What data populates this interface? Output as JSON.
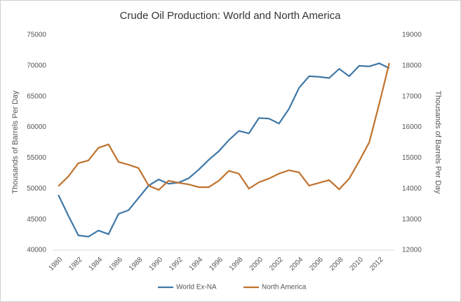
{
  "chart_data": {
    "type": "line",
    "title": "Crude Oil Production:  World and North America",
    "y_label": "Thousands of Barrels Per Day",
    "y2_label": "Thousands of Barrels Per Day",
    "x": [
      1980,
      1981,
      1982,
      1983,
      1984,
      1985,
      1986,
      1987,
      1988,
      1989,
      1990,
      1991,
      1992,
      1993,
      1994,
      1995,
      1996,
      1997,
      1998,
      1999,
      2000,
      2001,
      2002,
      2003,
      2004,
      2005,
      2006,
      2007,
      2008,
      2009,
      2010,
      2011,
      2012,
      2013
    ],
    "xlim": [
      1979.5,
      2013.5
    ],
    "xticks": [
      1980,
      1982,
      1984,
      1986,
      1988,
      1990,
      1992,
      1994,
      1996,
      1998,
      2000,
      2002,
      2004,
      2006,
      2008,
      2010,
      2012
    ],
    "ylim": [
      40000,
      75000
    ],
    "yticks": [
      40000,
      45000,
      50000,
      55000,
      60000,
      65000,
      70000,
      75000
    ],
    "y2lim": [
      12000,
      19000
    ],
    "y2ticks": [
      12000,
      13000,
      14000,
      15000,
      16000,
      17000,
      18000,
      19000
    ],
    "legend": "bottom",
    "series": [
      {
        "name": "World Ex-NA",
        "color": "#3f77a6",
        "values": [
          49000,
          45600,
          42400,
          42200,
          43200,
          42600,
          45900,
          46500,
          48500,
          50500,
          51500,
          50800,
          51000,
          51700,
          53100,
          54700,
          56100,
          57900,
          59400,
          59000,
          61500,
          61400,
          60600,
          63000,
          66400,
          68300,
          68200,
          68000,
          69500,
          68300,
          70000,
          69900,
          70400,
          69600
        ]
      },
      {
        "name": "North America",
        "color": "#c0722e",
        "axis": "y2",
        "values": [
          14080,
          14400,
          14830,
          14920,
          15330,
          15440,
          14870,
          14780,
          14670,
          14100,
          13960,
          14260,
          14190,
          14140,
          14050,
          14050,
          14260,
          14580,
          14490,
          14000,
          14210,
          14330,
          14490,
          14600,
          14530,
          14100,
          14190,
          14280,
          13980,
          14330,
          14900,
          15510,
          16770,
          18090
        ]
      }
    ]
  }
}
